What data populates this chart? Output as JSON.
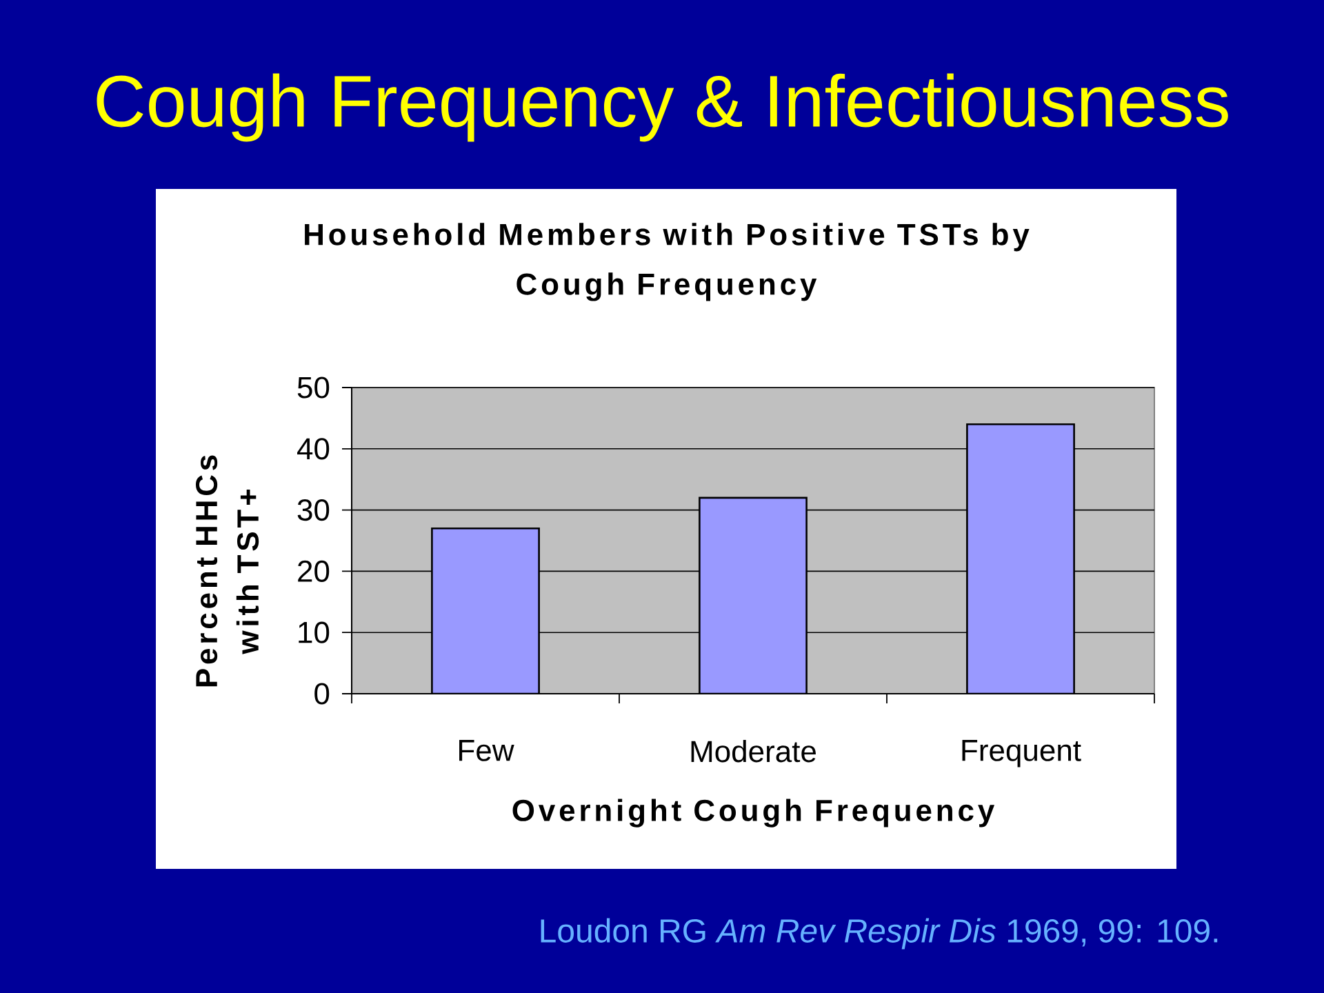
{
  "chart_data": {
    "type": "bar",
    "title": "Cough Frequency & Infectiousness",
    "subtitle": "Household Members with Positive TSTs by Cough Frequency",
    "xlabel": "Overnight Cough Frequency",
    "ylabel": "Percent HHCs with TST+",
    "categories": [
      "Few",
      "Moderate",
      "Frequent"
    ],
    "values": [
      27,
      32,
      44
    ],
    "color": "#9999ff",
    "ylim": [
      0,
      50
    ],
    "yticks": [
      0,
      10,
      20,
      30,
      40,
      50
    ],
    "grid": "y",
    "annotations": [
      "Loudon RG *Am Rev Respir Dis* 1969, 99: 109."
    ]
  }
}
